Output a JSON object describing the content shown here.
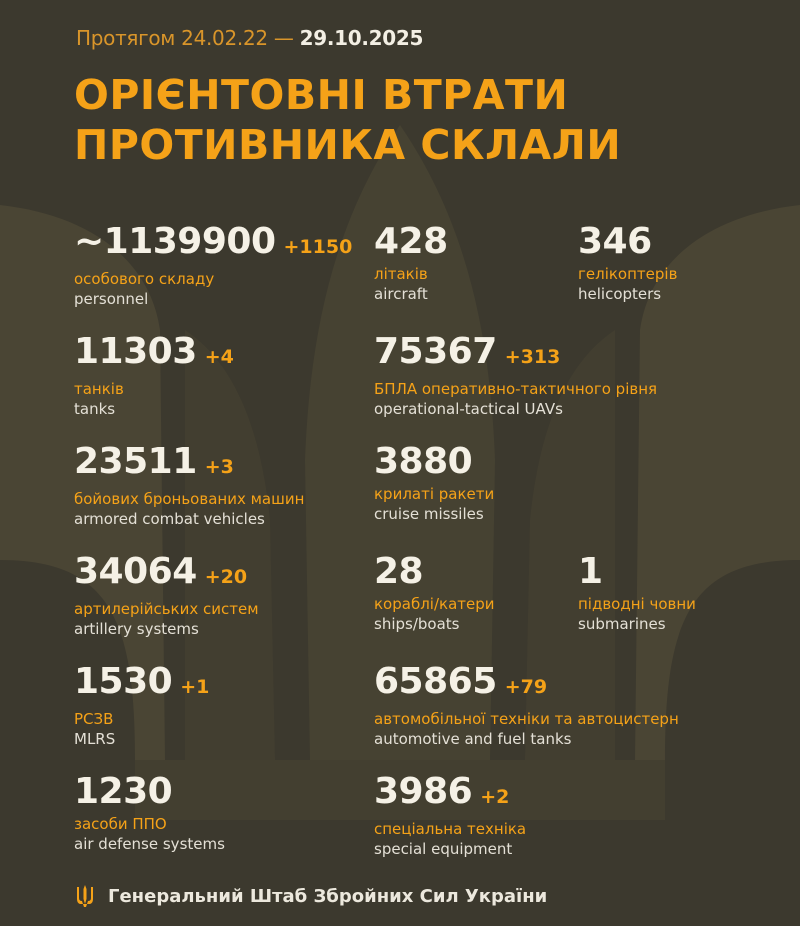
{
  "header": {
    "period_prefix": "Протягом 24.02.22 —",
    "period_end": "29.10.2025",
    "title_line1": "ОРІЄНТОВНІ ВТРАТИ",
    "title_line2": "ПРОТИВНИКА СКЛАЛИ"
  },
  "items": [
    {
      "value": "~1139900",
      "delta": "+1150",
      "ua": "особового складу",
      "en": "personnel",
      "col": 1
    },
    {
      "value": "428",
      "delta": "",
      "ua": "літаків",
      "en": "aircraft",
      "col": 2
    },
    {
      "value": "346",
      "delta": "",
      "ua": "гелікоптерів",
      "en": "helicopters",
      "col": 3
    },
    {
      "value": "11303",
      "delta": "+4",
      "ua": "танків",
      "en": "tanks",
      "col": 1
    },
    {
      "value": "75367",
      "delta": "+313",
      "ua": "БПЛА оперативно-тактичного рівня",
      "en": "operational-tactical UAVs",
      "col": 2
    },
    {
      "value": "23511",
      "delta": "+3",
      "ua": "бойових броньованих машин",
      "en": "armored combat vehicles",
      "col": 1
    },
    {
      "value": "3880",
      "delta": "",
      "ua": "крилаті ракети",
      "en": "cruise missiles",
      "col": 2
    },
    {
      "value": "34064",
      "delta": "+20",
      "ua": "артилерійських систем",
      "en": "artillery systems",
      "col": 1
    },
    {
      "value": "28",
      "delta": "",
      "ua": "кораблі/катери",
      "en": "ships/boats",
      "col": 2
    },
    {
      "value": "1",
      "delta": "",
      "ua": "підводні човни",
      "en": "submarines",
      "col": 3
    },
    {
      "value": "1530",
      "delta": "+1",
      "ua": "РСЗВ",
      "en": "MLRS",
      "col": 1
    },
    {
      "value": "65865",
      "delta": "+79",
      "ua": "автомобільної техніки та автоцистерн",
      "en": "automotive and fuel tanks",
      "col": 2
    },
    {
      "value": "1230",
      "delta": "",
      "ua": "засоби ППО",
      "en": "air defense systems",
      "col": 1
    },
    {
      "value": "3986",
      "delta": "+2",
      "ua": "спеціальна техніка",
      "en": "special equipment",
      "col": 2
    }
  ],
  "rows": [
    [
      0,
      1,
      2
    ],
    [
      3,
      4
    ],
    [
      5,
      6
    ],
    [
      7,
      8,
      9
    ],
    [
      10,
      11
    ],
    [
      12,
      13
    ]
  ],
  "footer": {
    "text": "Генеральний Штаб Збройних Сил України",
    "icon": "trident-icon"
  },
  "colors": {
    "background": "#3c392e",
    "accent": "#f5a218",
    "text": "#f5f1e6"
  }
}
